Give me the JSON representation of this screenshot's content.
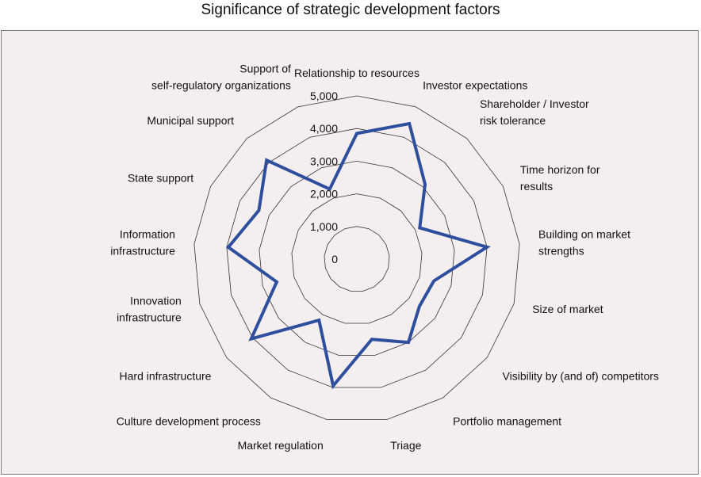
{
  "chart_data": {
    "type": "radar",
    "title": "Significance of strategic development factors",
    "rmax": 5000,
    "tick_labels": [
      "0",
      "1,000",
      "2,000",
      "3,000",
      "4,000",
      "5,000"
    ],
    "ticks": [
      0,
      1000,
      2000,
      3000,
      4000,
      5000
    ],
    "categories": [
      [
        "Relationship to resources"
      ],
      [
        "Investor expectations"
      ],
      [
        "Shareholder / Investor",
        "risk tolerance"
      ],
      [
        "Time horizon for",
        "results"
      ],
      [
        "Building on market",
        "strengths"
      ],
      [
        "Size of market"
      ],
      [
        "Visibility by (and of) competitors"
      ],
      [
        "Portfolio management"
      ],
      [
        "Triage"
      ],
      [
        "Market regulation"
      ],
      [
        "Culture development process"
      ],
      [
        "Hard infrastructure"
      ],
      [
        "Innovation",
        "infrastructure"
      ],
      [
        "Information",
        "infrastructure"
      ],
      [
        "State support"
      ],
      [
        "Municipal support"
      ],
      [
        "Support of",
        "self-regulatory organizations"
      ]
    ],
    "series": [
      {
        "values": [
          3850,
          4450,
          3100,
          2150,
          4000,
          2450,
          2400,
          3000,
          2500,
          3950,
          2200,
          4050,
          2550,
          3950,
          3350,
          4100,
          2300
        ],
        "color": "#2e4f9e"
      }
    ],
    "grid_color": "#333333",
    "frame_color": "#7a7a7a"
  }
}
